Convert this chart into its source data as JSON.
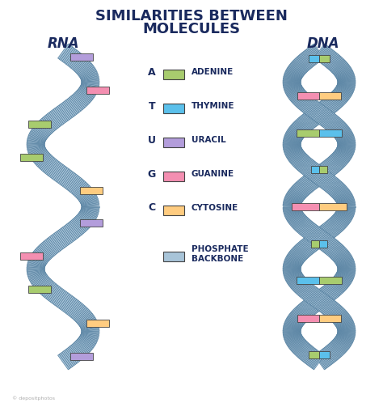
{
  "title_line1": "SIMILARITIES BETWEEN",
  "title_line2": "MOLECULES",
  "rna_label": "RNA",
  "dna_label": "DNA",
  "background_color": "#ffffff",
  "title_color": "#1a2a5e",
  "label_color": "#1a2a5e",
  "backbone_color": "#a8c4d8",
  "backbone_edge_color": "#5580a0",
  "adenine_color": "#a8cc6e",
  "thymine_color": "#5bc0eb",
  "uracil_color": "#b39ddb",
  "guanine_color": "#f48fb1",
  "cytosine_color": "#ffcc80",
  "legend_items": [
    {
      "letter": "A",
      "label": "ADENINE",
      "color": "#a8cc6e"
    },
    {
      "letter": "T",
      "label": "THYMINE",
      "color": "#5bc0eb"
    },
    {
      "letter": "U",
      "label": "URACIL",
      "color": "#b39ddb"
    },
    {
      "letter": "G",
      "label": "GUANINE",
      "color": "#f48fb1"
    },
    {
      "letter": "C",
      "label": "CYTOSINE",
      "color": "#ffcc80"
    },
    {
      "letter": "",
      "label": "PHOSPHATE\nBACKBONE",
      "color": "#a8c4d8"
    }
  ]
}
